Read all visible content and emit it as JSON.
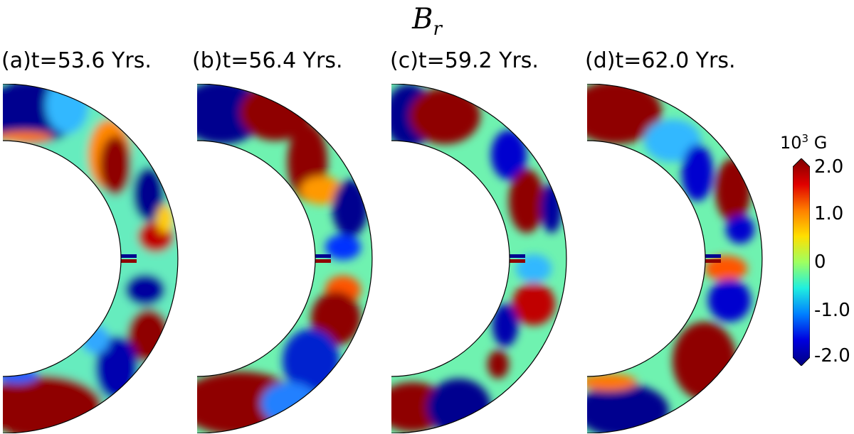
{
  "figure": {
    "title": "B",
    "title_sub": "r"
  },
  "panels": [
    {
      "label": "(a)",
      "time": "t=53.6 Yrs."
    },
    {
      "label": "(b)",
      "time": "t=56.4 Yrs."
    },
    {
      "label": "(c)",
      "time": "t=59.2 Yrs."
    },
    {
      "label": "(d)",
      "time": "t=62.0 Yrs."
    }
  ],
  "colorbar": {
    "unit_prefix": "10",
    "unit_exp": "3",
    "unit_suffix": " G",
    "ticks": [
      "2.0",
      "1.0",
      "0",
      "-1.0",
      "-2.0"
    ],
    "colors": [
      "#7f0000",
      "#e00000",
      "#ff7f00",
      "#ffdf00",
      "#9fff60",
      "#20efdf",
      "#0080ff",
      "#0000df",
      "#00007f"
    ]
  }
}
